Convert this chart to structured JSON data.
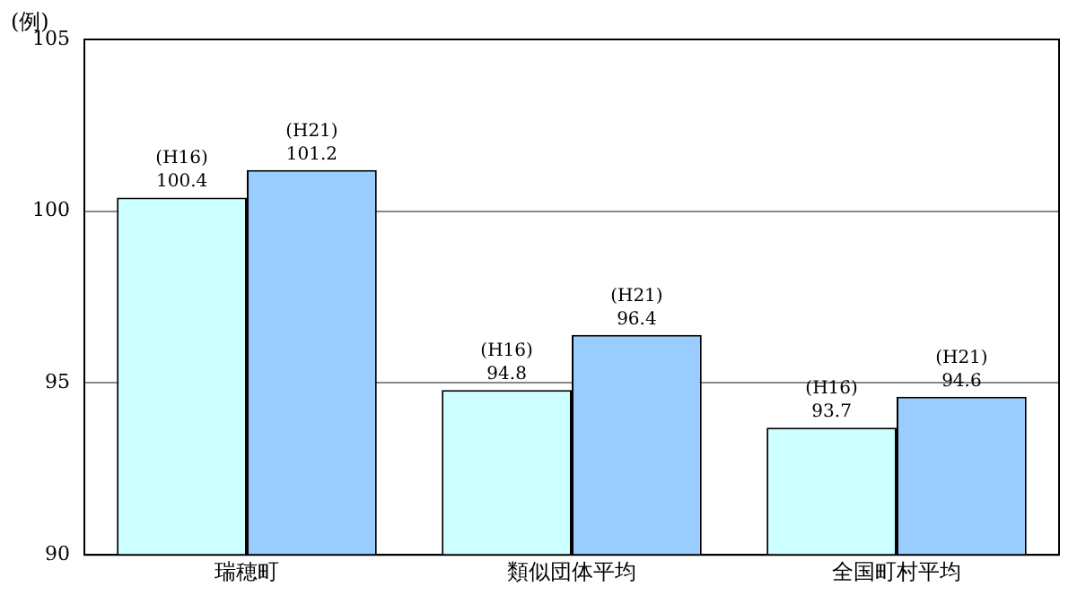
{
  "chart_data": {
    "type": "bar",
    "ylabel": "(例)",
    "categories": [
      "瑞穂町",
      "類似団体平均",
      "全国町村平均"
    ],
    "series": [
      {
        "name": "(H16)",
        "color": "#ccffff",
        "values": [
          100.4,
          94.8,
          93.7
        ]
      },
      {
        "name": "(H21)",
        "color": "#99ccff",
        "values": [
          101.2,
          96.4,
          94.6
        ]
      }
    ],
    "ylim": [
      90,
      105
    ],
    "yticks": [
      90,
      95,
      100,
      105
    ],
    "grid": "y",
    "legend": false,
    "data_labels": true
  }
}
